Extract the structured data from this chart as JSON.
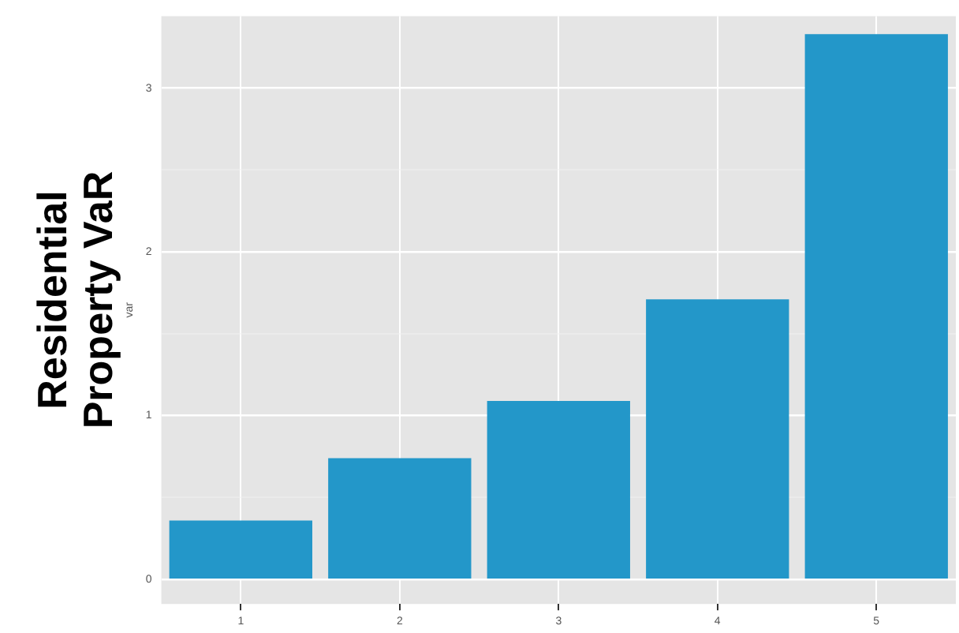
{
  "chart_data": {
    "type": "bar",
    "title": "Residential Property VaR",
    "ylabel": "var",
    "categories": [
      "1",
      "2",
      "3",
      "4",
      "5"
    ],
    "values": [
      0.36,
      0.74,
      1.09,
      1.71,
      3.33
    ],
    "color": "#2397c9",
    "ylim": [
      -0.15,
      3.44
    ],
    "yticks": [
      0,
      {
        "value": 0.5,
        "label": null
      },
      1,
      {
        "value": 1.5,
        "label": null
      },
      2,
      {
        "value": 2.5,
        "label": null
      },
      3
    ],
    "grid": true
  }
}
